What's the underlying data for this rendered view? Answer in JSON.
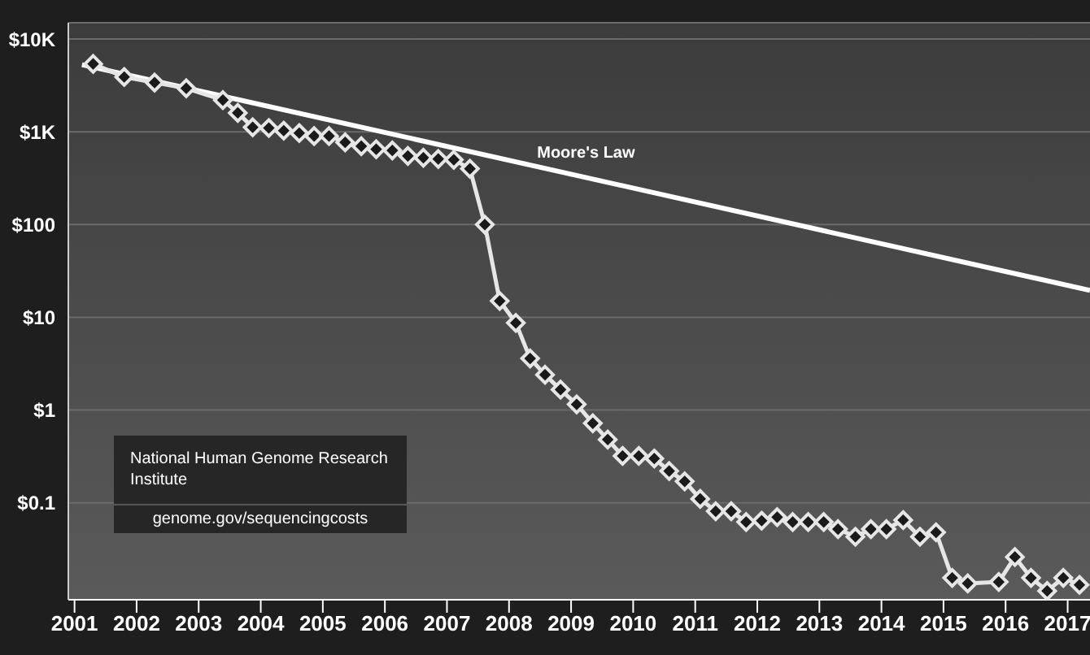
{
  "chart_data": {
    "type": "line",
    "log": "y",
    "grid": "y",
    "marker": "diamond",
    "line_style": "solid",
    "xlim": [
      2000.9,
      2017.36
    ],
    "xticks": [
      2001,
      2002,
      2003,
      2004,
      2005,
      2006,
      2007,
      2008,
      2009,
      2010,
      2011,
      2012,
      2013,
      2014,
      2015,
      2016,
      2017
    ],
    "ylim": [
      0.009,
      15000
    ],
    "yticks": [
      {
        "value": 0.1,
        "label": "$0.1"
      },
      {
        "value": 1,
        "label": "$1"
      },
      {
        "value": 10,
        "label": "$10"
      },
      {
        "value": 100,
        "label": "$100"
      },
      {
        "value": 1000,
        "label": "$1K"
      },
      {
        "value": 10000,
        "label": "$10K"
      }
    ],
    "series": [
      {
        "name": "Moore's Law",
        "color": "#ffffff",
        "marker": "none",
        "x": [
          2001.12,
          2017.36
        ],
        "values": [
          5300,
          19.5
        ]
      },
      {
        "color": "#e6e6e6",
        "x": [
          2001.3,
          2001.8,
          2002.29,
          2002.8,
          2003.39,
          2003.63,
          2003.87,
          2004.13,
          2004.37,
          2004.62,
          2004.86,
          2005.1,
          2005.36,
          2005.62,
          2005.86,
          2006.12,
          2006.37,
          2006.62,
          2006.86,
          2007.11,
          2007.37,
          2007.61,
          2007.85,
          2008.11,
          2008.34,
          2008.58,
          2008.83,
          2009.09,
          2009.35,
          2009.59,
          2009.83,
          2010.09,
          2010.34,
          2010.58,
          2010.83,
          2011.08,
          2011.33,
          2011.58,
          2011.82,
          2012.07,
          2012.32,
          2012.57,
          2012.82,
          2013.07,
          2013.3,
          2013.58,
          2013.83,
          2014.08,
          2014.35,
          2014.62,
          2014.88,
          2015.14,
          2015.39,
          2015.89,
          2016.15,
          2016.41,
          2016.67,
          2016.93,
          2017.19
        ],
        "values": [
          5400,
          3900,
          3400,
          2950,
          2200,
          1600,
          1120,
          1100,
          1030,
          970,
          900,
          900,
          770,
          700,
          650,
          630,
          550,
          525,
          510,
          500,
          400,
          100,
          15,
          8.7,
          3.6,
          2.4,
          1.66,
          1.15,
          0.72,
          0.48,
          0.32,
          0.32,
          0.3,
          0.22,
          0.17,
          0.11,
          0.081,
          0.081,
          0.062,
          0.064,
          0.07,
          0.062,
          0.062,
          0.062,
          0.052,
          0.043,
          0.052,
          0.052,
          0.065,
          0.043,
          0.048,
          0.0155,
          0.0135,
          0.014,
          0.026,
          0.0155,
          0.0112,
          0.0155,
          0.013
        ]
      }
    ],
    "annotations": [
      "National Human Genome Research Institute",
      "genome.gov/sequencingcosts"
    ]
  }
}
